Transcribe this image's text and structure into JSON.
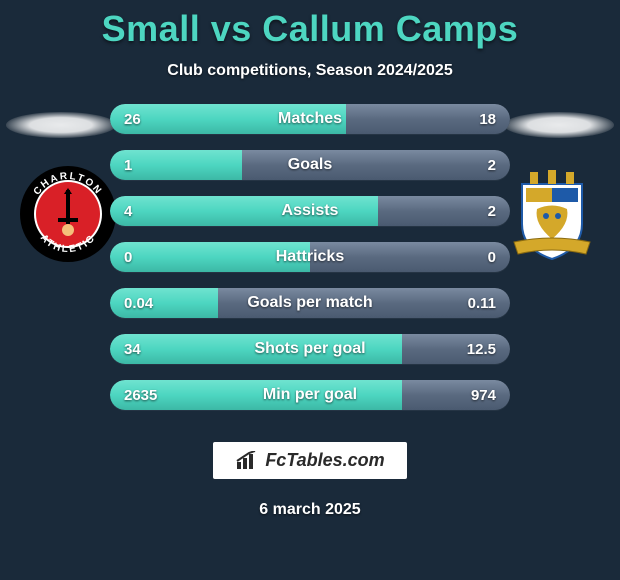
{
  "title": "Small vs Callum Camps",
  "subtitle": "Club competitions, Season 2024/2025",
  "footer_date": "6 march 2025",
  "watermark_text": "FcTables.com",
  "colors": {
    "background": "#1a2a3a",
    "accent": "#4dd6c1",
    "bar_track": "#3a4a5a",
    "left_fill": "#4dd6c1",
    "right_fill": "#5a6a80",
    "text": "#ffffff"
  },
  "crest_left": {
    "name": "Charlton Athletic",
    "ring_color": "#000000",
    "inner_color": "#d92027",
    "text_top": "CHARLTON",
    "text_bottom": "ATHLETIC"
  },
  "crest_right": {
    "name": "Stockport County",
    "shield_fill": "#ffffff",
    "accent_blue": "#1e5aa8",
    "accent_gold": "#d4a82a"
  },
  "stats": [
    {
      "label": "Matches",
      "left_val": "26",
      "right_val": "18",
      "left_pct": 59,
      "right_pct": 41
    },
    {
      "label": "Goals",
      "left_val": "1",
      "right_val": "2",
      "left_pct": 33,
      "right_pct": 67
    },
    {
      "label": "Assists",
      "left_val": "4",
      "right_val": "2",
      "left_pct": 67,
      "right_pct": 33
    },
    {
      "label": "Hattricks",
      "left_val": "0",
      "right_val": "0",
      "left_pct": 50,
      "right_pct": 50
    },
    {
      "label": "Goals per match",
      "left_val": "0.04",
      "right_val": "0.11",
      "left_pct": 27,
      "right_pct": 73
    },
    {
      "label": "Shots per goal",
      "left_val": "34",
      "right_val": "12.5",
      "left_pct": 73,
      "right_pct": 27
    },
    {
      "label": "Min per goal",
      "left_val": "2635",
      "right_val": "974",
      "left_pct": 73,
      "right_pct": 27
    }
  ]
}
